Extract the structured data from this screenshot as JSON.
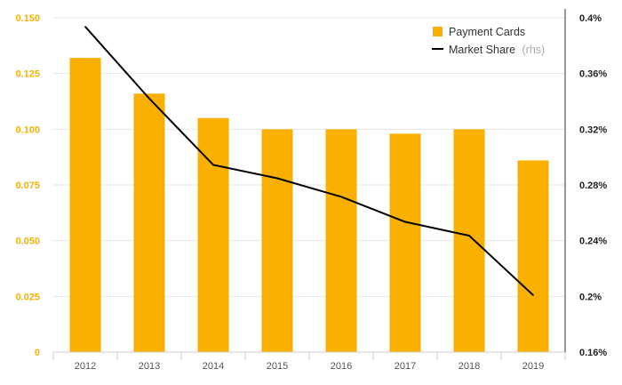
{
  "chart_data": {
    "type": "bar",
    "categories": [
      "2012",
      "2013",
      "2014",
      "2015",
      "2016",
      "2017",
      "2018",
      "2019"
    ],
    "series": [
      {
        "name": "Payment Cards",
        "type": "bar",
        "axis": "left",
        "color": "#F9B000",
        "values": [
          0.132,
          0.116,
          0.105,
          0.1,
          0.1,
          0.098,
          0.1,
          0.086
        ]
      },
      {
        "name": "Market Share",
        "type": "line",
        "axis": "right",
        "color": "#000000",
        "values": [
          0.3936,
          0.342,
          0.2944,
          0.2848,
          0.2715,
          0.2535,
          0.2436,
          0.2009
        ]
      }
    ],
    "legend": {
      "bar_label": "Payment Cards",
      "line_label": "Market Share",
      "line_suffix": "(rhs)",
      "position": "top-right"
    },
    "y_left": {
      "ylim": [
        0,
        0.15
      ],
      "ticks": [
        0,
        0.025,
        0.05,
        0.075,
        0.1,
        0.125,
        0.15
      ],
      "tick_labels": [
        "0",
        "0.025",
        "0.050",
        "0.075",
        "0.100",
        "0.125",
        "0.150"
      ]
    },
    "y_right": {
      "ylim": [
        0.16,
        0.4
      ],
      "ticks": [
        0.16,
        0.2,
        0.24,
        0.28,
        0.32,
        0.36,
        0.4
      ],
      "tick_labels": [
        "0.16%",
        "0.2%",
        "0.24%",
        "0.28%",
        "0.32%",
        "0.36%",
        "0.4%"
      ]
    },
    "grid": true,
    "title": "",
    "xlabel": "",
    "ylabel": ""
  }
}
